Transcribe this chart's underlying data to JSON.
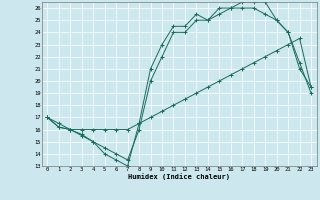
{
  "xlabel": "Humidex (Indice chaleur)",
  "background_color": "#cce8ee",
  "line_color": "#1a6b5a",
  "grid_color": "#ffffff",
  "xlim": [
    -0.5,
    23.5
  ],
  "ylim": [
    13,
    26.5
  ],
  "xticks": [
    0,
    1,
    2,
    3,
    4,
    5,
    6,
    7,
    8,
    9,
    10,
    11,
    12,
    13,
    14,
    15,
    16,
    17,
    18,
    19,
    20,
    21,
    22,
    23
  ],
  "yticks": [
    13,
    14,
    15,
    16,
    17,
    18,
    19,
    20,
    21,
    22,
    23,
    24,
    25,
    26
  ],
  "line1_x": [
    0,
    1,
    2,
    3,
    4,
    5,
    6,
    7,
    8,
    9,
    10,
    11,
    12,
    13,
    14,
    15,
    16,
    17,
    18,
    19,
    20,
    21,
    22,
    23
  ],
  "line1_y": [
    17,
    16.2,
    16,
    15.6,
    15,
    14,
    13.5,
    13,
    16.5,
    21,
    23,
    24.5,
    24.5,
    25.5,
    25,
    26,
    26,
    26.5,
    26.5,
    26.5,
    25,
    24,
    21.5,
    19
  ],
  "line2_x": [
    0,
    1,
    2,
    3,
    4,
    5,
    6,
    7,
    8,
    9,
    10,
    11,
    12,
    13,
    14,
    15,
    16,
    17,
    18,
    19,
    20,
    21,
    22,
    23
  ],
  "line2_y": [
    17,
    16.2,
    16,
    16,
    16,
    16,
    16,
    16,
    16.5,
    17,
    17.5,
    18,
    18.5,
    19,
    19.5,
    20,
    20.5,
    21,
    21.5,
    22,
    22.5,
    23,
    23.5,
    19.5
  ],
  "line3_x": [
    0,
    1,
    2,
    3,
    4,
    5,
    6,
    7,
    8,
    9,
    10,
    11,
    12,
    13,
    14,
    15,
    16,
    17,
    18,
    19,
    20,
    21,
    22,
    23
  ],
  "line3_y": [
    17,
    16.5,
    16,
    15.5,
    15,
    14.5,
    14,
    13.5,
    16,
    20,
    22,
    24,
    24,
    25,
    25,
    25.5,
    26,
    26,
    26,
    25.5,
    25,
    24,
    21,
    19.5
  ]
}
